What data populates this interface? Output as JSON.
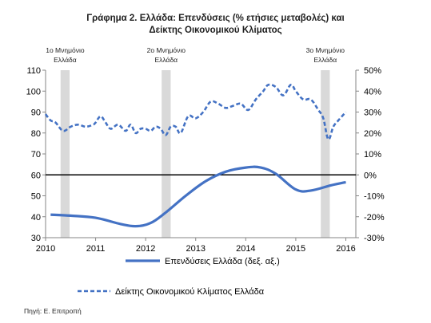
{
  "title": {
    "line1": "Γράφημα 2. Ελλάδα: Επενδύσεις (% ετήσιες μεταβολές) και",
    "line2": "Δείκτης Οικονομικού Κλίματος"
  },
  "source": "Πηγή: Ε. Επιτροπή",
  "colors": {
    "series": "#4472c4",
    "band": "#d9d9d9",
    "zero_line": "#000000"
  },
  "chart_data": {
    "type": "line",
    "x_ticks": [
      "2010",
      "2011",
      "2012",
      "2013",
      "2014",
      "2015",
      "2016"
    ],
    "xlim": [
      2010,
      2016.2
    ],
    "y_left": {
      "ticks": [
        "30",
        "40",
        "50",
        "60",
        "70",
        "80",
        "90",
        "100",
        "110"
      ],
      "ylim": [
        30,
        110
      ]
    },
    "y_right": {
      "ticks": [
        "-30%",
        "-20%",
        "-10%",
        "0%",
        "10%",
        "20%",
        "30%",
        "40%",
        "50%"
      ],
      "ylim": [
        -30,
        50
      ],
      "unit": "%"
    },
    "bands": [
      {
        "label_line1": "1ο Μνημόνιο",
        "label_line2": "Ελλάδα",
        "x_start": 2010.3,
        "x_end": 2010.48
      },
      {
        "label_line1": "2ο Μνημόνιο",
        "label_line2": "Ελλάδα",
        "x_start": 2012.32,
        "x_end": 2012.5
      },
      {
        "label_line1": "3ο Μνημόνιο",
        "label_line2": "Ελλάδα",
        "x_start": 2015.5,
        "x_end": 2015.68
      }
    ],
    "series": [
      {
        "name": "Επενδύσεις Ελλάδα (δεξ. αξ.)",
        "axis": "right",
        "style": "solid",
        "x": [
          2010.1,
          2010.5,
          2011.0,
          2011.5,
          2011.8,
          2012.1,
          2012.4,
          2012.8,
          2013.2,
          2013.6,
          2014.0,
          2014.3,
          2014.6,
          2015.0,
          2015.3,
          2015.7,
          2016.0
        ],
        "values": [
          -19,
          -19.5,
          -20.5,
          -23.5,
          -24.5,
          -23,
          -18,
          -10,
          -3,
          1.5,
          3.5,
          3.5,
          0.5,
          -7,
          -7.5,
          -5,
          -3.5
        ]
      },
      {
        "name": "Δείκτης Οικονομικού Κλίματος Ελλάδα",
        "axis": "left",
        "style": "dashed",
        "x": [
          2010.0,
          2010.1,
          2010.2,
          2010.35,
          2010.5,
          2010.65,
          2010.8,
          2010.95,
          2011.0,
          2011.1,
          2011.2,
          2011.3,
          2011.45,
          2011.6,
          2011.7,
          2011.8,
          2011.9,
          2012.0,
          2012.1,
          2012.2,
          2012.3,
          2012.4,
          2012.5,
          2012.6,
          2012.7,
          2012.85,
          2013.0,
          2013.15,
          2013.3,
          2013.45,
          2013.6,
          2013.75,
          2013.9,
          2014.05,
          2014.2,
          2014.35,
          2014.45,
          2014.6,
          2014.75,
          2014.9,
          2015.0,
          2015.15,
          2015.3,
          2015.45,
          2015.55,
          2015.65,
          2015.75,
          2015.85,
          2016.0
        ],
        "values": [
          89,
          86,
          85,
          81,
          83,
          84,
          83,
          84,
          85,
          88,
          85,
          82,
          84,
          81,
          84,
          80,
          82,
          82,
          81,
          83,
          82,
          79,
          83,
          83,
          80,
          88,
          87,
          90,
          95,
          94,
          92,
          93,
          94,
          91,
          96,
          100,
          103,
          102,
          98,
          103,
          100,
          96,
          96,
          91,
          87,
          77,
          83,
          86,
          90
        ]
      }
    ]
  }
}
